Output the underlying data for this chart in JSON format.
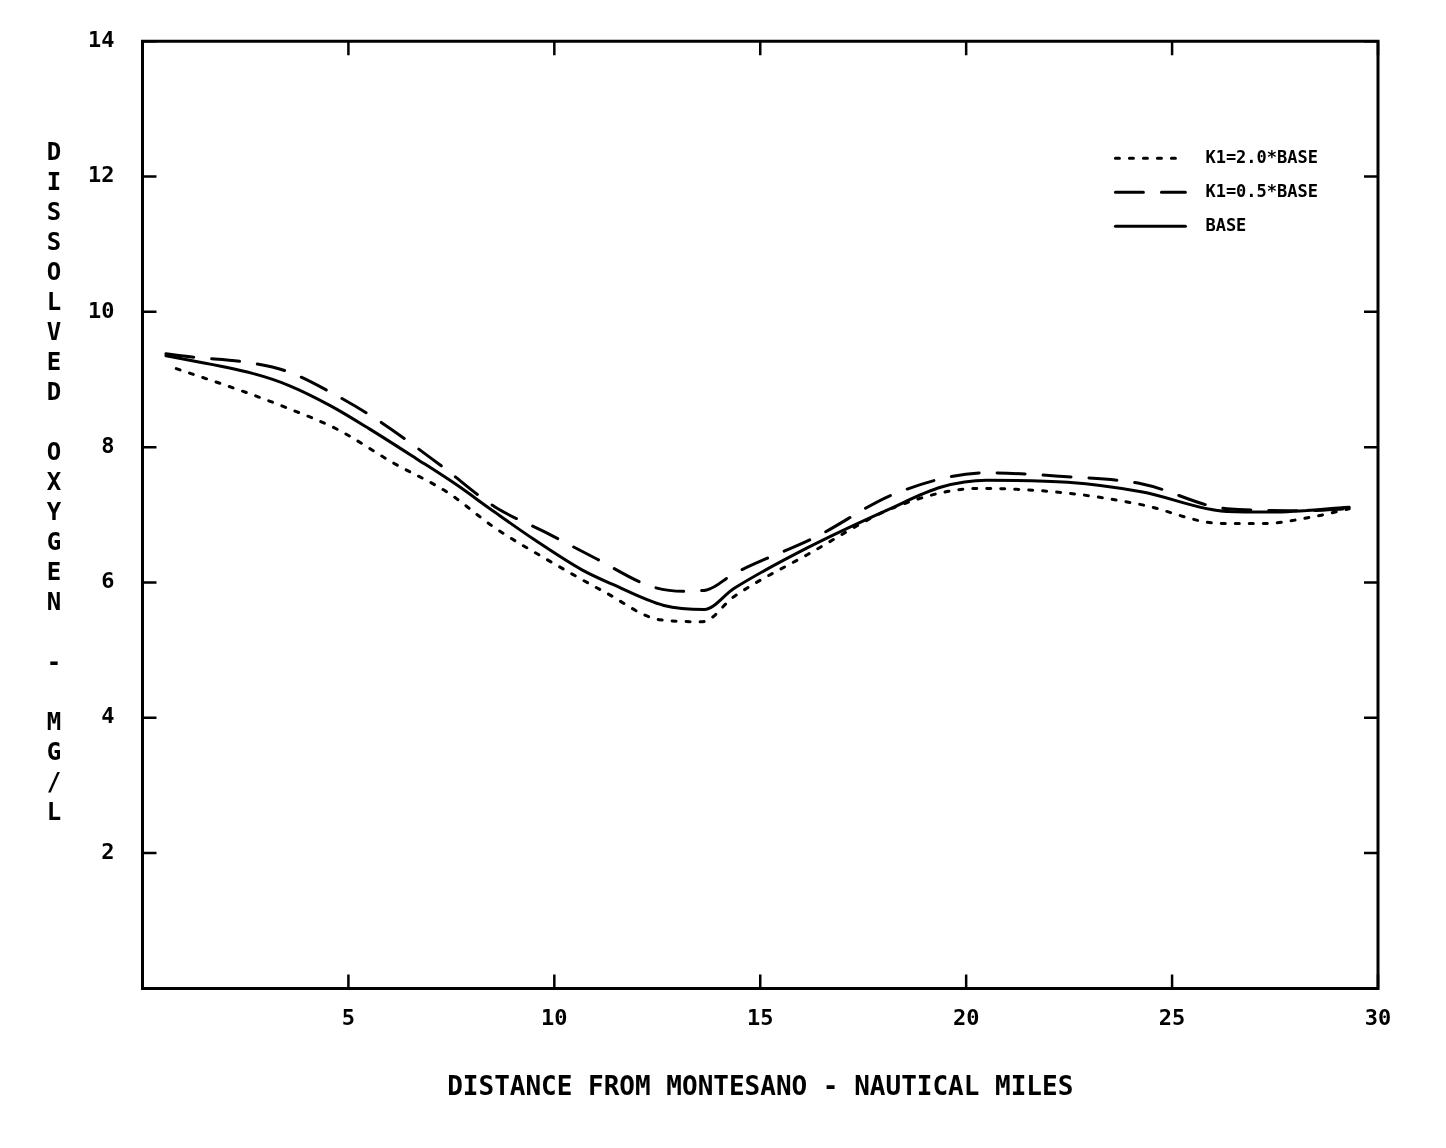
{
  "chart_data": {
    "type": "line",
    "xlabel": "DISTANCE FROM MONTESANO - NAUTICAL MILES",
    "ylabel": "DISSOLVED OXYGEN - MG/L",
    "xlim": [
      0,
      30
    ],
    "xticks": [
      5,
      10,
      15,
      20,
      25,
      30
    ],
    "ylim": [
      0,
      14
    ],
    "yticks": [
      2,
      4,
      6,
      8,
      10,
      12,
      14
    ],
    "grid": false,
    "legend": "top right",
    "marker": "none",
    "series": [
      {
        "name": "K1=2.0*BASE",
        "color": "#000000",
        "line_style": "dotted",
        "x": [
          0.82,
          2.37,
          3.51,
          4.74,
          6.08,
          7.41,
          8.55,
          9.79,
          11.22,
          12.56,
          13.6,
          14.36,
          16.14,
          18.3,
          20.3,
          22.47,
          24.25,
          26.23,
          27.2,
          28.5,
          29.3
        ],
        "values": [
          9.16,
          8.84,
          8.58,
          8.26,
          7.77,
          7.33,
          6.81,
          6.35,
          5.86,
          5.45,
          5.42,
          5.79,
          6.41,
          7.12,
          7.39,
          7.32,
          7.15,
          6.87,
          6.87,
          6.98,
          7.09
        ]
      },
      {
        "name": "K1=0.5*BASE",
        "color": "#000000",
        "line_style": "dashed",
        "x": [
          0.57,
          1.24,
          2.57,
          3.51,
          4.57,
          5.71,
          7.22,
          8.55,
          9.79,
          11.02,
          12.36,
          13.13,
          13.7,
          14.36,
          16.34,
          18.3,
          20.5,
          22.27,
          24.25,
          26.33,
          28.2,
          29.3
        ],
        "values": [
          9.38,
          9.33,
          9.25,
          9.12,
          8.81,
          8.4,
          7.74,
          7.12,
          6.74,
          6.35,
          5.94,
          5.87,
          5.89,
          6.13,
          6.67,
          7.32,
          7.62,
          7.57,
          7.46,
          7.09,
          7.06,
          7.09
        ]
      },
      {
        "name": "BASE",
        "color": "#000000",
        "line_style": "solid",
        "x": [
          0.57,
          2.67,
          3.56,
          4.57,
          5.51,
          6.65,
          7.61,
          8.55,
          9.52,
          10.66,
          11.42,
          12.66,
          13.64,
          14.36,
          16.14,
          18.12,
          19.4,
          20.5,
          22.47,
          24.25,
          26.33,
          27.42,
          29.3
        ],
        "values": [
          9.35,
          9.09,
          8.91,
          8.61,
          8.27,
          7.83,
          7.45,
          7.04,
          6.63,
          6.19,
          5.97,
          5.66,
          5.6,
          5.91,
          6.51,
          7.08,
          7.41,
          7.51,
          7.48,
          7.34,
          7.05,
          7.04,
          7.11
        ]
      }
    ]
  }
}
